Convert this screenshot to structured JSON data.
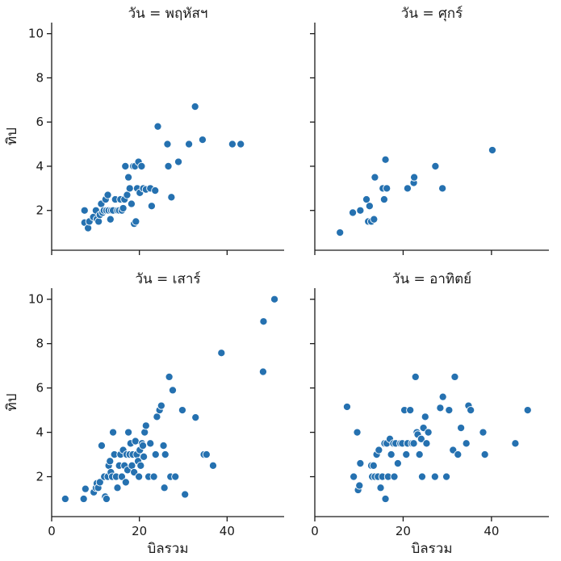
{
  "chart_data": {
    "type": "scatter",
    "xlabel": "บิลรวม",
    "ylabel": "ทิป",
    "xlim": [
      0,
      53
    ],
    "ylim": [
      0.2,
      10.5
    ],
    "x_ticks": [
      0,
      20,
      40
    ],
    "y_ticks": [
      2,
      4,
      6,
      8,
      10
    ],
    "grid": false,
    "point_color": "#2571b0",
    "facets": [
      {
        "title": "วัน = พฤหัสฯ",
        "points": [
          [
            7.5,
            2.0
          ],
          [
            7.5,
            1.45
          ],
          [
            8.3,
            1.2
          ],
          [
            8.6,
            1.5
          ],
          [
            9.5,
            1.7
          ],
          [
            10.1,
            2.0
          ],
          [
            10.3,
            1.6
          ],
          [
            10.7,
            1.5
          ],
          [
            11.0,
            1.8
          ],
          [
            11.3,
            2.3
          ],
          [
            11.6,
            1.9
          ],
          [
            11.9,
            2.0
          ],
          [
            12.3,
            2.5
          ],
          [
            12.5,
            2.0
          ],
          [
            12.8,
            2.7
          ],
          [
            13.0,
            2.0
          ],
          [
            13.4,
            1.6
          ],
          [
            13.6,
            2.0
          ],
          [
            14.0,
            2.0
          ],
          [
            14.5,
            2.5
          ],
          [
            15.0,
            2.0
          ],
          [
            15.4,
            2.0
          ],
          [
            15.7,
            2.5
          ],
          [
            16.0,
            2.0
          ],
          [
            16.3,
            2.1
          ],
          [
            16.6,
            2.5
          ],
          [
            16.8,
            4.0
          ],
          [
            17.2,
            2.7
          ],
          [
            17.5,
            3.5
          ],
          [
            17.8,
            3.0
          ],
          [
            18.2,
            2.3
          ],
          [
            18.6,
            4.0
          ],
          [
            18.8,
            1.4
          ],
          [
            19.0,
            4.0
          ],
          [
            19.2,
            1.5
          ],
          [
            19.5,
            3.0
          ],
          [
            19.8,
            4.2
          ],
          [
            20.1,
            2.8
          ],
          [
            20.5,
            4.0
          ],
          [
            20.9,
            3.0
          ],
          [
            21.5,
            2.95
          ],
          [
            22.5,
            3.0
          ],
          [
            22.8,
            2.2
          ],
          [
            23.6,
            2.9
          ],
          [
            24.2,
            5.8
          ],
          [
            26.4,
            5.0
          ],
          [
            26.6,
            4.0
          ],
          [
            27.3,
            2.6
          ],
          [
            28.9,
            4.2
          ],
          [
            31.3,
            5.0
          ],
          [
            32.7,
            6.7
          ],
          [
            34.4,
            5.2
          ],
          [
            41.2,
            5.0
          ],
          [
            43.1,
            5.0
          ]
        ]
      },
      {
        "title": "วัน = ศุกร์",
        "points": [
          [
            5.7,
            1.0
          ],
          [
            8.6,
            1.9
          ],
          [
            10.3,
            2.0
          ],
          [
            11.7,
            2.5
          ],
          [
            12.1,
            1.5
          ],
          [
            12.4,
            2.2
          ],
          [
            12.8,
            1.5
          ],
          [
            13.4,
            1.6
          ],
          [
            13.6,
            3.5
          ],
          [
            15.4,
            3.0
          ],
          [
            15.7,
            2.5
          ],
          [
            16.0,
            4.3
          ],
          [
            16.3,
            3.0
          ],
          [
            21.0,
            3.0
          ],
          [
            22.4,
            3.25
          ],
          [
            22.5,
            3.5
          ],
          [
            27.3,
            4.0
          ],
          [
            28.9,
            3.0
          ],
          [
            40.2,
            4.73
          ]
        ]
      },
      {
        "title": "วัน = เสาร์",
        "points": [
          [
            3.1,
            1.0
          ],
          [
            7.3,
            1.0
          ],
          [
            7.7,
            1.45
          ],
          [
            9.6,
            1.3
          ],
          [
            10.1,
            1.5
          ],
          [
            10.3,
            1.7
          ],
          [
            10.6,
            1.5
          ],
          [
            11.0,
            1.75
          ],
          [
            11.4,
            3.4
          ],
          [
            12.0,
            2.0
          ],
          [
            12.2,
            1.1
          ],
          [
            12.5,
            1.0
          ],
          [
            12.8,
            2.0
          ],
          [
            13.0,
            2.5
          ],
          [
            13.3,
            2.7
          ],
          [
            13.5,
            2.2
          ],
          [
            13.8,
            2.0
          ],
          [
            14.0,
            4.0
          ],
          [
            14.3,
            3.0
          ],
          [
            14.7,
            2.0
          ],
          [
            15.0,
            1.5
          ],
          [
            15.4,
            2.5
          ],
          [
            15.7,
            3.0
          ],
          [
            16.0,
            2.0
          ],
          [
            16.3,
            3.2
          ],
          [
            16.6,
            2.5
          ],
          [
            16.9,
            1.75
          ],
          [
            17.1,
            3.0
          ],
          [
            17.3,
            2.3
          ],
          [
            17.5,
            4.0
          ],
          [
            17.8,
            3.0
          ],
          [
            18.0,
            3.5
          ],
          [
            18.3,
            2.5
          ],
          [
            18.5,
            3.0
          ],
          [
            18.8,
            2.2
          ],
          [
            19.1,
            3.6
          ],
          [
            19.4,
            3.0
          ],
          [
            19.7,
            2.7
          ],
          [
            19.9,
            2.0
          ],
          [
            20.1,
            3.2
          ],
          [
            20.3,
            2.5
          ],
          [
            20.6,
            3.5
          ],
          [
            20.8,
            3.4
          ],
          [
            21.0,
            2.9
          ],
          [
            21.2,
            4.0
          ],
          [
            21.5,
            4.3
          ],
          [
            22.1,
            2.0
          ],
          [
            22.5,
            3.5
          ],
          [
            23.3,
            2.0
          ],
          [
            23.7,
            3.0
          ],
          [
            24.0,
            4.7
          ],
          [
            24.6,
            5.0
          ],
          [
            25.0,
            5.2
          ],
          [
            25.5,
            3.4
          ],
          [
            25.7,
            1.5
          ],
          [
            25.9,
            3.0
          ],
          [
            26.8,
            6.5
          ],
          [
            27.1,
            2.0
          ],
          [
            27.6,
            5.9
          ],
          [
            28.2,
            2.0
          ],
          [
            29.8,
            5.0
          ],
          [
            30.4,
            1.2
          ],
          [
            32.8,
            4.67
          ],
          [
            34.7,
            3.0
          ],
          [
            35.3,
            3.0
          ],
          [
            36.8,
            2.5
          ],
          [
            38.7,
            7.58
          ],
          [
            48.3,
            9.0
          ],
          [
            48.2,
            6.73
          ],
          [
            50.8,
            10.0
          ]
        ]
      },
      {
        "title": "วัน = อาทิตย์",
        "points": [
          [
            7.3,
            5.15
          ],
          [
            8.8,
            2.0
          ],
          [
            9.6,
            4.0
          ],
          [
            9.8,
            1.4
          ],
          [
            10.1,
            1.6
          ],
          [
            10.3,
            2.6
          ],
          [
            12.8,
            2.5
          ],
          [
            13.0,
            2.0
          ],
          [
            13.3,
            2.5
          ],
          [
            13.6,
            2.0
          ],
          [
            14.0,
            3.0
          ],
          [
            14.3,
            2.0
          ],
          [
            14.5,
            3.2
          ],
          [
            14.9,
            1.5
          ],
          [
            15.3,
            2.0
          ],
          [
            15.8,
            3.5
          ],
          [
            16.0,
            1.0
          ],
          [
            16.3,
            3.5
          ],
          [
            16.6,
            2.0
          ],
          [
            17.0,
            3.7
          ],
          [
            17.3,
            3.0
          ],
          [
            17.8,
            3.5
          ],
          [
            18.0,
            2.0
          ],
          [
            18.3,
            3.5
          ],
          [
            18.8,
            2.6
          ],
          [
            19.4,
            3.5
          ],
          [
            19.8,
            3.5
          ],
          [
            20.3,
            5.0
          ],
          [
            20.7,
            3.0
          ],
          [
            21.0,
            3.5
          ],
          [
            21.6,
            5.0
          ],
          [
            22.0,
            3.5
          ],
          [
            22.4,
            3.5
          ],
          [
            22.8,
            6.5
          ],
          [
            23.1,
            4.0
          ],
          [
            23.3,
            3.9
          ],
          [
            23.7,
            3.0
          ],
          [
            24.1,
            3.7
          ],
          [
            24.3,
            2.0
          ],
          [
            24.6,
            4.2
          ],
          [
            25.0,
            4.7
          ],
          [
            25.3,
            3.5
          ],
          [
            25.7,
            4.0
          ],
          [
            27.2,
            2.0
          ],
          [
            28.4,
            5.1
          ],
          [
            29.0,
            5.6
          ],
          [
            29.8,
            2.0
          ],
          [
            30.4,
            5.0
          ],
          [
            31.3,
            3.2
          ],
          [
            31.7,
            6.5
          ],
          [
            32.4,
            3.0
          ],
          [
            33.1,
            4.2
          ],
          [
            34.3,
            3.5
          ],
          [
            34.8,
            5.2
          ],
          [
            35.3,
            5.0
          ],
          [
            38.1,
            4.0
          ],
          [
            38.5,
            3.0
          ],
          [
            45.4,
            3.5
          ],
          [
            48.2,
            5.0
          ]
        ]
      }
    ]
  }
}
